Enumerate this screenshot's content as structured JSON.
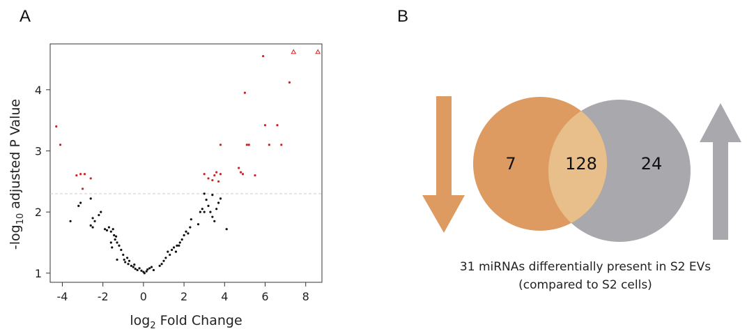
{
  "panels": {
    "a": "A",
    "b": "B"
  },
  "chart_data": [
    {
      "type": "scatter",
      "xlabel_base": "log",
      "xlabel_sub": "2",
      "xlabel_rest": " Fold Change",
      "ylabel_base": "-log",
      "ylabel_sub": "10",
      "ylabel_rest": " adjusted P Value",
      "xlim": [
        -4.6,
        8.8
      ],
      "ylim": [
        0.85,
        4.75
      ],
      "xticks": [
        -4,
        -2,
        0,
        2,
        4,
        6,
        8
      ],
      "yticks": [
        1,
        2,
        3,
        4
      ],
      "threshold_y": 2.3,
      "colors": {
        "significant": "#cc2222",
        "not_significant": "#111111",
        "threshold": "#cccccc"
      },
      "significant": [
        {
          "x": -4.3,
          "y": 3.4
        },
        {
          "x": -4.1,
          "y": 3.1
        },
        {
          "x": -3.3,
          "y": 2.6
        },
        {
          "x": -3.1,
          "y": 2.62
        },
        {
          "x": -2.9,
          "y": 2.62
        },
        {
          "x": -2.6,
          "y": 2.55
        },
        {
          "x": -3.0,
          "y": 2.38
        },
        {
          "x": 3.0,
          "y": 2.62
        },
        {
          "x": 3.2,
          "y": 2.55
        },
        {
          "x": 3.4,
          "y": 2.52
        },
        {
          "x": 3.5,
          "y": 2.6
        },
        {
          "x": 3.6,
          "y": 2.65
        },
        {
          "x": 3.7,
          "y": 2.5
        },
        {
          "x": 3.8,
          "y": 2.62
        },
        {
          "x": 3.8,
          "y": 3.1
        },
        {
          "x": 4.7,
          "y": 2.72
        },
        {
          "x": 4.8,
          "y": 2.65
        },
        {
          "x": 4.9,
          "y": 2.62
        },
        {
          "x": 5.1,
          "y": 3.1
        },
        {
          "x": 5.2,
          "y": 3.1
        },
        {
          "x": 5.5,
          "y": 2.6
        },
        {
          "x": 5.0,
          "y": 3.95
        },
        {
          "x": 5.9,
          "y": 4.55
        },
        {
          "x": 6.0,
          "y": 3.42
        },
        {
          "x": 6.2,
          "y": 3.1
        },
        {
          "x": 6.6,
          "y": 3.42
        },
        {
          "x": 6.8,
          "y": 3.1
        },
        {
          "x": 7.2,
          "y": 4.12
        }
      ],
      "significant_triangles": [
        {
          "x": 7.4,
          "y": 4.62
        },
        {
          "x": 8.6,
          "y": 4.62
        }
      ],
      "not_significant": [
        {
          "x": -3.6,
          "y": 1.85
        },
        {
          "x": -3.2,
          "y": 2.1
        },
        {
          "x": -3.1,
          "y": 2.15
        },
        {
          "x": -2.6,
          "y": 2.22
        },
        {
          "x": -2.5,
          "y": 1.9
        },
        {
          "x": -2.4,
          "y": 1.85
        },
        {
          "x": -2.2,
          "y": 1.95
        },
        {
          "x": -2.1,
          "y": 2.0
        },
        {
          "x": -2.5,
          "y": 1.75
        },
        {
          "x": -2.6,
          "y": 1.78
        },
        {
          "x": -1.9,
          "y": 1.72
        },
        {
          "x": -1.8,
          "y": 1.7
        },
        {
          "x": -1.7,
          "y": 1.75
        },
        {
          "x": -1.6,
          "y": 1.68
        },
        {
          "x": -1.5,
          "y": 1.72
        },
        {
          "x": -1.45,
          "y": 1.62
        },
        {
          "x": -1.4,
          "y": 1.55
        },
        {
          "x": -1.35,
          "y": 1.6
        },
        {
          "x": -1.3,
          "y": 1.5
        },
        {
          "x": -1.2,
          "y": 1.45
        },
        {
          "x": -1.6,
          "y": 1.5
        },
        {
          "x": -1.55,
          "y": 1.42
        },
        {
          "x": -1.1,
          "y": 1.38
        },
        {
          "x": -1.0,
          "y": 1.3
        },
        {
          "x": -0.95,
          "y": 1.22
        },
        {
          "x": -1.3,
          "y": 1.22
        },
        {
          "x": -0.9,
          "y": 1.18
        },
        {
          "x": -0.8,
          "y": 1.25
        },
        {
          "x": -0.75,
          "y": 1.15
        },
        {
          "x": -0.7,
          "y": 1.2
        },
        {
          "x": -0.6,
          "y": 1.12
        },
        {
          "x": -0.5,
          "y": 1.1
        },
        {
          "x": -0.45,
          "y": 1.14
        },
        {
          "x": -0.4,
          "y": 1.07
        },
        {
          "x": -0.3,
          "y": 1.05
        },
        {
          "x": -0.2,
          "y": 1.08
        },
        {
          "x": -0.1,
          "y": 1.04
        },
        {
          "x": 0.0,
          "y": 1.02
        },
        {
          "x": 0.05,
          "y": 1.0
        },
        {
          "x": 0.15,
          "y": 1.03
        },
        {
          "x": 0.2,
          "y": 1.06
        },
        {
          "x": 0.3,
          "y": 1.08
        },
        {
          "x": 0.4,
          "y": 1.1
        },
        {
          "x": 0.5,
          "y": 1.05
        },
        {
          "x": 0.8,
          "y": 1.12
        },
        {
          "x": 0.9,
          "y": 1.15
        },
        {
          "x": 1.0,
          "y": 1.2
        },
        {
          "x": 1.1,
          "y": 1.25
        },
        {
          "x": 1.2,
          "y": 1.35
        },
        {
          "x": 1.3,
          "y": 1.3
        },
        {
          "x": 1.4,
          "y": 1.38
        },
        {
          "x": 1.5,
          "y": 1.42
        },
        {
          "x": 1.6,
          "y": 1.35
        },
        {
          "x": 1.65,
          "y": 1.45
        },
        {
          "x": 1.75,
          "y": 1.45
        },
        {
          "x": 1.8,
          "y": 1.5
        },
        {
          "x": 1.9,
          "y": 1.55
        },
        {
          "x": 2.0,
          "y": 1.62
        },
        {
          "x": 2.1,
          "y": 1.68
        },
        {
          "x": 2.2,
          "y": 1.65
        },
        {
          "x": 2.3,
          "y": 1.75
        },
        {
          "x": 2.35,
          "y": 1.88
        },
        {
          "x": 2.7,
          "y": 1.8
        },
        {
          "x": 2.8,
          "y": 2.0
        },
        {
          "x": 2.9,
          "y": 2.05
        },
        {
          "x": 3.0,
          "y": 2.0
        },
        {
          "x": 3.1,
          "y": 2.2
        },
        {
          "x": 3.2,
          "y": 2.1
        },
        {
          "x": 3.3,
          "y": 2.0
        },
        {
          "x": 3.4,
          "y": 1.92
        },
        {
          "x": 3.5,
          "y": 1.85
        },
        {
          "x": 3.6,
          "y": 2.05
        },
        {
          "x": 3.7,
          "y": 2.15
        },
        {
          "x": 3.8,
          "y": 2.22
        },
        {
          "x": 4.1,
          "y": 1.72
        },
        {
          "x": 3.0,
          "y": 2.3
        },
        {
          "x": 3.4,
          "y": 2.28
        }
      ]
    },
    {
      "type": "venn",
      "sets": [
        {
          "only": "7",
          "color": "#de9b61"
        },
        {
          "only": "24",
          "color": "#a9a8ad"
        }
      ],
      "intersection": {
        "value": "128",
        "color": "#e8bf8b"
      },
      "arrows": {
        "down_color": "#de9b61",
        "up_color": "#a9a8ad"
      },
      "caption_line1": "31 miRNAs differentially present in S2 EVs",
      "caption_line2": "(compared to S2 cells)"
    }
  ]
}
